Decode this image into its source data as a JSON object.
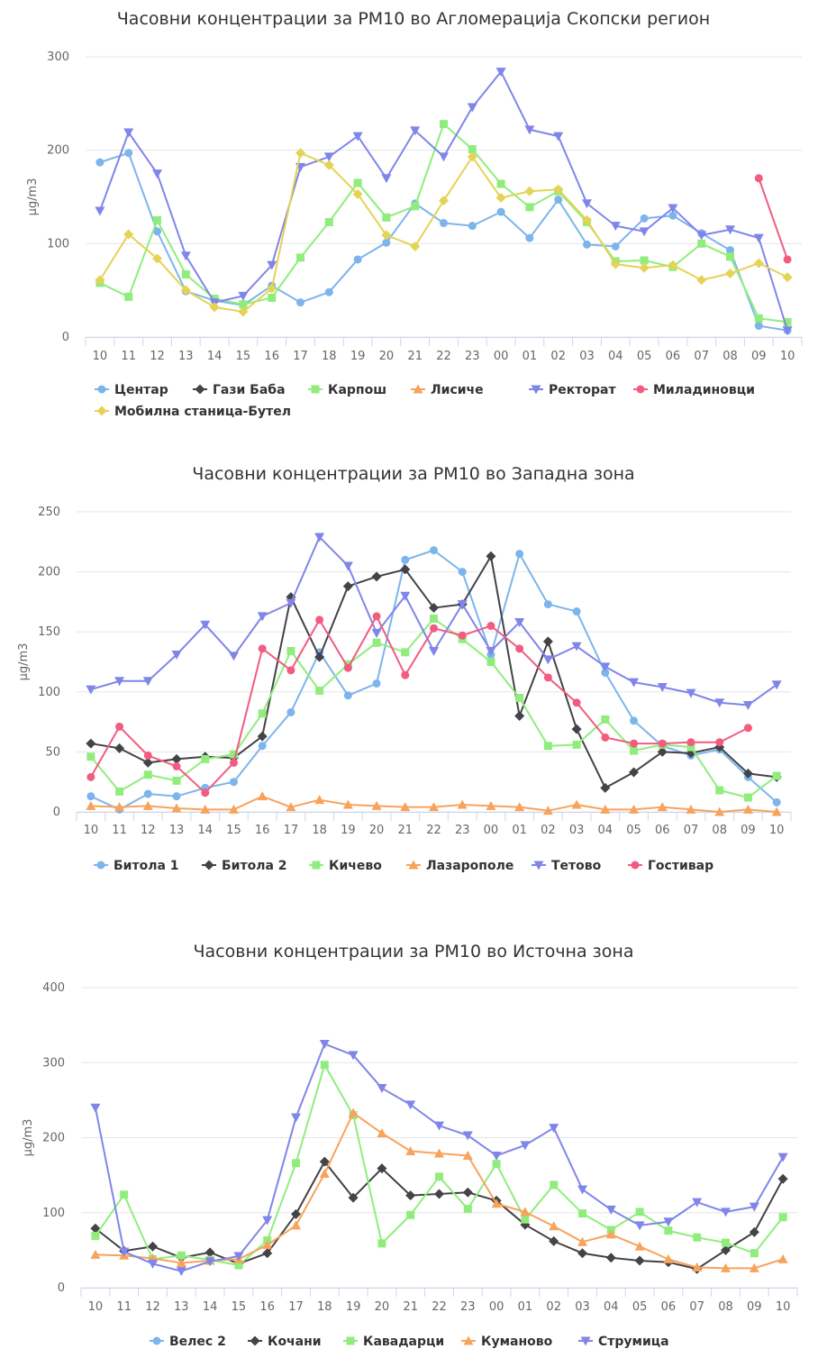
{
  "chart_data": [
    {
      "type": "line",
      "title": "Часовни концентрации за PM10 во Агломерација Скопски регион",
      "ylabel": "µg/m3",
      "xlabel": "",
      "ylim": [
        0,
        300
      ],
      "yticks": [
        0,
        100,
        200,
        300
      ],
      "grid": true,
      "legend_position": "bottom-left",
      "categories": [
        "10",
        "11",
        "12",
        "13",
        "14",
        "15",
        "16",
        "17",
        "18",
        "19",
        "20",
        "21",
        "22",
        "23",
        "00",
        "01",
        "02",
        "03",
        "04",
        "05",
        "06",
        "07",
        "08",
        "09",
        "10"
      ],
      "series": [
        {
          "name": "Центар",
          "color": "#7cb5ec",
          "marker": "circle",
          "values": [
            187,
            197,
            113,
            49,
            39,
            34,
            55,
            37,
            48,
            83,
            101,
            143,
            122,
            119,
            134,
            106,
            147,
            99,
            97,
            127,
            130,
            111,
            93,
            12,
            7
          ]
        },
        {
          "name": "Гази Баба",
          "color": "#434348",
          "marker": "diamond",
          "values": [
            null,
            null,
            null,
            null,
            null,
            null,
            null,
            null,
            null,
            null,
            null,
            null,
            null,
            null,
            null,
            null,
            null,
            null,
            null,
            null,
            null,
            null,
            null,
            null,
            null
          ]
        },
        {
          "name": "Карпош",
          "color": "#90ed7d",
          "marker": "square",
          "values": [
            58,
            43,
            125,
            67,
            41,
            35,
            42,
            85,
            123,
            165,
            128,
            140,
            228,
            201,
            164,
            139,
            156,
            123,
            81,
            82,
            75,
            100,
            86,
            20,
            16
          ]
        },
        {
          "name": "Лисиче",
          "color": "#f7a35c",
          "marker": "triangle",
          "values": [
            null,
            null,
            null,
            null,
            null,
            null,
            null,
            null,
            null,
            null,
            null,
            null,
            null,
            null,
            null,
            null,
            null,
            null,
            null,
            null,
            null,
            null,
            null,
            null,
            null
          ]
        },
        {
          "name": "Ректорат",
          "color": "#8085e9",
          "marker": "triangle-down",
          "values": [
            135,
            219,
            175,
            87,
            37,
            44,
            77,
            182,
            193,
            215,
            170,
            221,
            193,
            246,
            284,
            222,
            215,
            143,
            119,
            113,
            138,
            109,
            115,
            106,
            7
          ]
        },
        {
          "name": "Миладиновци",
          "color": "#f15c80",
          "marker": "circle",
          "values": [
            null,
            null,
            null,
            null,
            null,
            null,
            null,
            null,
            null,
            null,
            null,
            null,
            null,
            null,
            null,
            null,
            null,
            null,
            null,
            null,
            null,
            null,
            null,
            170,
            83
          ]
        },
        {
          "name": "Мобилна станица-Бутел",
          "color": "#e4d354",
          "marker": "diamond",
          "values": [
            61,
            110,
            84,
            50,
            32,
            27,
            52,
            197,
            184,
            153,
            109,
            97,
            146,
            193,
            149,
            156,
            158,
            125,
            78,
            74,
            77,
            61,
            68,
            79,
            64
          ]
        }
      ]
    },
    {
      "type": "line",
      "title": "Часовни концентрации за PM10 во Западна зона",
      "ylabel": "µg/m3",
      "xlabel": "",
      "ylim": [
        0,
        250
      ],
      "yticks": [
        0,
        50,
        100,
        150,
        200,
        250
      ],
      "grid": true,
      "legend_position": "bottom-left",
      "categories": [
        "10",
        "11",
        "12",
        "13",
        "14",
        "15",
        "16",
        "17",
        "18",
        "19",
        "20",
        "21",
        "22",
        "23",
        "00",
        "01",
        "02",
        "03",
        "04",
        "05",
        "06",
        "07",
        "08",
        "09",
        "10"
      ],
      "series": [
        {
          "name": "Битола 1",
          "color": "#7cb5ec",
          "marker": "circle",
          "values": [
            13,
            2,
            15,
            13,
            20,
            25,
            55,
            83,
            133,
            97,
            107,
            210,
            218,
            200,
            131,
            215,
            173,
            167,
            116,
            76,
            55,
            47,
            52,
            29,
            8
          ]
        },
        {
          "name": "Битола 2",
          "color": "#434348",
          "marker": "diamond",
          "values": [
            57,
            53,
            41,
            44,
            46,
            45,
            63,
            179,
            129,
            188,
            196,
            202,
            170,
            173,
            213,
            80,
            142,
            69,
            20,
            33,
            50,
            49,
            54,
            32,
            29
          ]
        },
        {
          "name": "Кичево",
          "color": "#90ed7d",
          "marker": "square",
          "values": [
            46,
            17,
            31,
            26,
            44,
            48,
            82,
            134,
            101,
            123,
            141,
            133,
            161,
            144,
            125,
            95,
            55,
            56,
            77,
            51,
            56,
            54,
            18,
            12,
            30
          ]
        },
        {
          "name": "Лазарополе",
          "color": "#f7a35c",
          "marker": "triangle",
          "values": [
            5,
            4,
            5,
            3,
            2,
            2,
            13,
            4,
            10,
            6,
            5,
            4,
            4,
            6,
            5,
            4,
            1,
            6,
            2,
            2,
            4,
            2,
            0,
            2,
            0
          ]
        },
        {
          "name": "Тетово",
          "color": "#8085e9",
          "marker": "triangle-down",
          "values": [
            102,
            109,
            109,
            131,
            156,
            130,
            163,
            174,
            229,
            205,
            149,
            180,
            134,
            173,
            134,
            158,
            127,
            138,
            121,
            108,
            104,
            99,
            91,
            89,
            106
          ]
        },
        {
          "name": "Гостивар",
          "color": "#f15c80",
          "marker": "circle",
          "values": [
            29,
            71,
            47,
            38,
            16,
            41,
            136,
            118,
            160,
            120,
            163,
            114,
            153,
            147,
            155,
            136,
            112,
            91,
            62,
            57,
            57,
            58,
            58,
            70,
            null
          ]
        }
      ]
    },
    {
      "type": "line",
      "title": "Часовни концентрации за PM10 во Источна зона",
      "ylabel": "µg/m3",
      "xlabel": "",
      "ylim": [
        0,
        400
      ],
      "yticks": [
        0,
        100,
        200,
        300,
        400
      ],
      "grid": true,
      "legend_position": "bottom-center",
      "categories": [
        "10",
        "11",
        "12",
        "13",
        "14",
        "15",
        "16",
        "17",
        "18",
        "19",
        "20",
        "21",
        "22",
        "23",
        "00",
        "01",
        "02",
        "03",
        "04",
        "05",
        "06",
        "07",
        "08",
        "09",
        "10"
      ],
      "series": [
        {
          "name": "Велес 2",
          "color": "#7cb5ec",
          "marker": "circle",
          "values": [
            null,
            null,
            null,
            null,
            null,
            null,
            null,
            null,
            null,
            null,
            null,
            null,
            null,
            null,
            null,
            null,
            null,
            null,
            null,
            null,
            null,
            null,
            null,
            null,
            null
          ]
        },
        {
          "name": "Кочани",
          "color": "#434348",
          "marker": "diamond",
          "values": [
            79,
            49,
            55,
            40,
            47,
            32,
            46,
            98,
            168,
            120,
            159,
            123,
            125,
            127,
            116,
            84,
            62,
            46,
            40,
            36,
            34,
            25,
            50,
            74,
            145
          ]
        },
        {
          "name": "Кавадарци",
          "color": "#90ed7d",
          "marker": "square",
          "values": [
            69,
            124,
            38,
            43,
            37,
            30,
            63,
            166,
            297,
            230,
            59,
            97,
            148,
            105,
            165,
            91,
            137,
            99,
            77,
            101,
            76,
            67,
            60,
            46,
            94
          ]
        },
        {
          "name": "Куманово",
          "color": "#f7a35c",
          "marker": "triangle",
          "values": [
            44,
            43,
            39,
            33,
            36,
            38,
            57,
            83,
            152,
            233,
            206,
            182,
            179,
            176,
            112,
            101,
            82,
            61,
            71,
            55,
            38,
            27,
            26,
            26,
            38
          ]
        },
        {
          "name": "Струмица",
          "color": "#8085e9",
          "marker": "triangle-down",
          "values": [
            240,
            48,
            32,
            22,
            35,
            42,
            90,
            227,
            325,
            310,
            266,
            244,
            216,
            203,
            176,
            190,
            213,
            131,
            104,
            83,
            88,
            114,
            101,
            108,
            174
          ]
        }
      ]
    }
  ]
}
